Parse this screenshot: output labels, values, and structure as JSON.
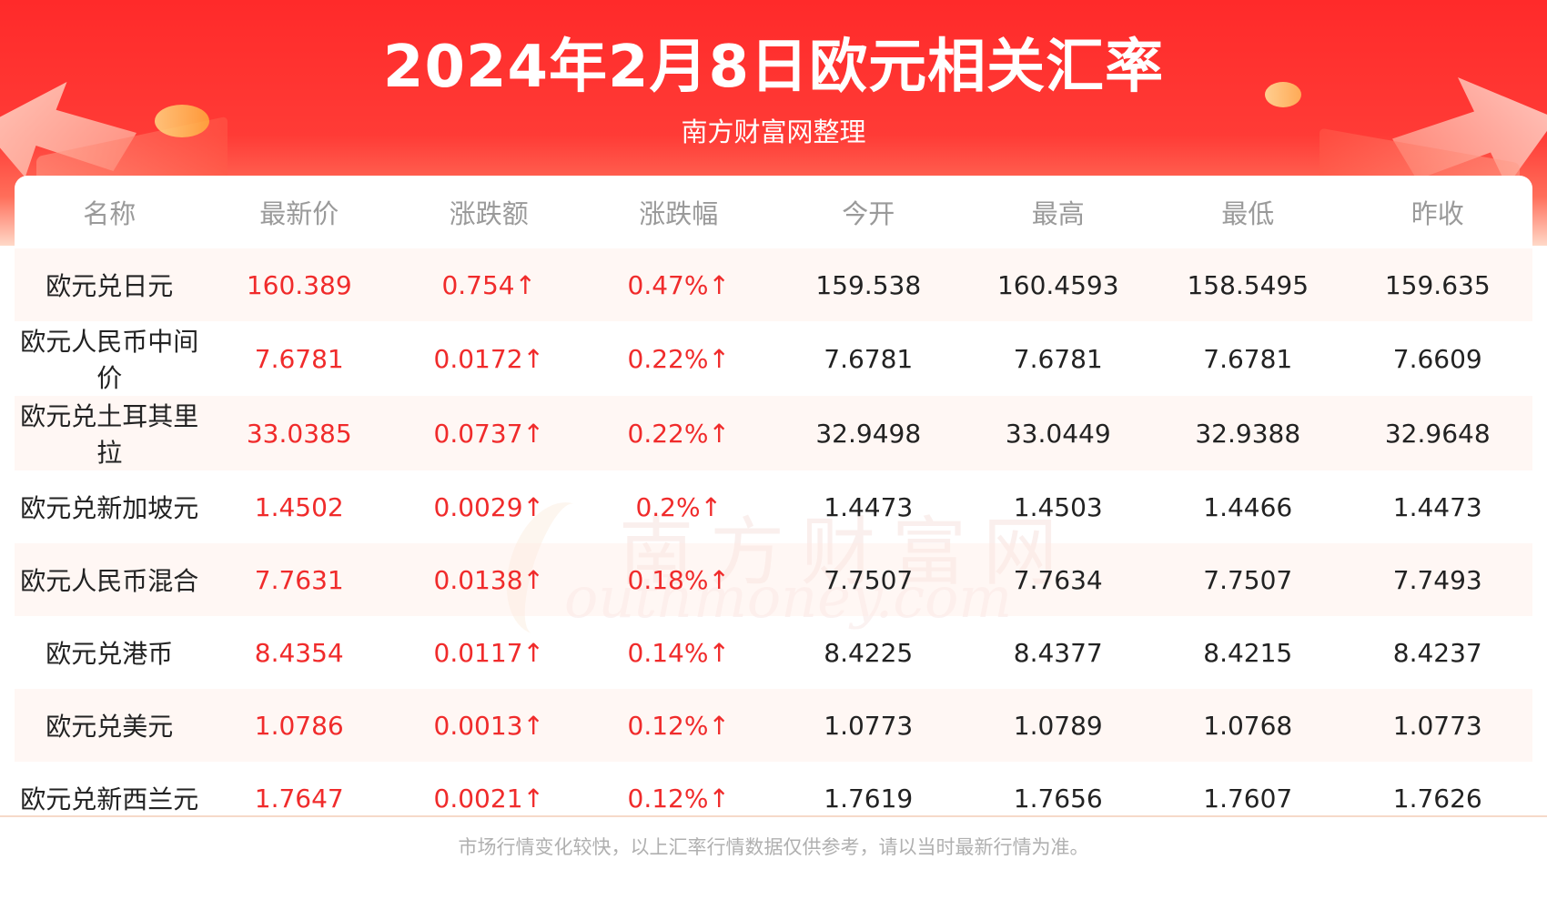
{
  "header": {
    "title": "2024年2月8日欧元相关汇率",
    "subtitle": "南方财富网整理"
  },
  "watermark": {
    "cn": "南方财富网",
    "en": "outhmoney.com"
  },
  "table": {
    "columns": [
      "名称",
      "最新价",
      "涨跌额",
      "涨跌幅",
      "今开",
      "最高",
      "最低",
      "昨收"
    ],
    "rows": [
      [
        "欧元兑日元",
        "160.389",
        "0.754↑",
        "0.47%↑",
        "159.538",
        "160.4593",
        "158.5495",
        "159.635"
      ],
      [
        "欧元人民币中间价",
        "7.6781",
        "0.0172↑",
        "0.22%↑",
        "7.6781",
        "7.6781",
        "7.6781",
        "7.6609"
      ],
      [
        "欧元兑土耳其里拉",
        "33.0385",
        "0.0737↑",
        "0.22%↑",
        "32.9498",
        "33.0449",
        "32.9388",
        "32.9648"
      ],
      [
        "欧元兑新加坡元",
        "1.4502",
        "0.0029↑",
        "0.2%↑",
        "1.4473",
        "1.4503",
        "1.4466",
        "1.4473"
      ],
      [
        "欧元人民币混合",
        "7.7631",
        "0.0138↑",
        "0.18%↑",
        "7.7507",
        "7.7634",
        "7.7507",
        "7.7493"
      ],
      [
        "欧元兑港币",
        "8.4354",
        "0.0117↑",
        "0.14%↑",
        "8.4225",
        "8.4377",
        "8.4215",
        "8.4237"
      ],
      [
        "欧元兑美元",
        "1.0786",
        "0.0013↑",
        "0.12%↑",
        "1.0773",
        "1.0789",
        "1.0768",
        "1.0773"
      ],
      [
        "欧元兑新西兰元",
        "1.7647",
        "0.0021↑",
        "0.12%↑",
        "1.7619",
        "1.7656",
        "1.7607",
        "1.7626"
      ]
    ]
  },
  "footer": {
    "note": "市场行情变化较快，以上汇率行情数据仅供参考，请以当时最新行情为准。"
  },
  "colors": {
    "banner_red": "#ff2a2a",
    "up_red": "#f02b2b",
    "header_gray": "#9a9a9a",
    "row_tint": "#fff4f0"
  }
}
